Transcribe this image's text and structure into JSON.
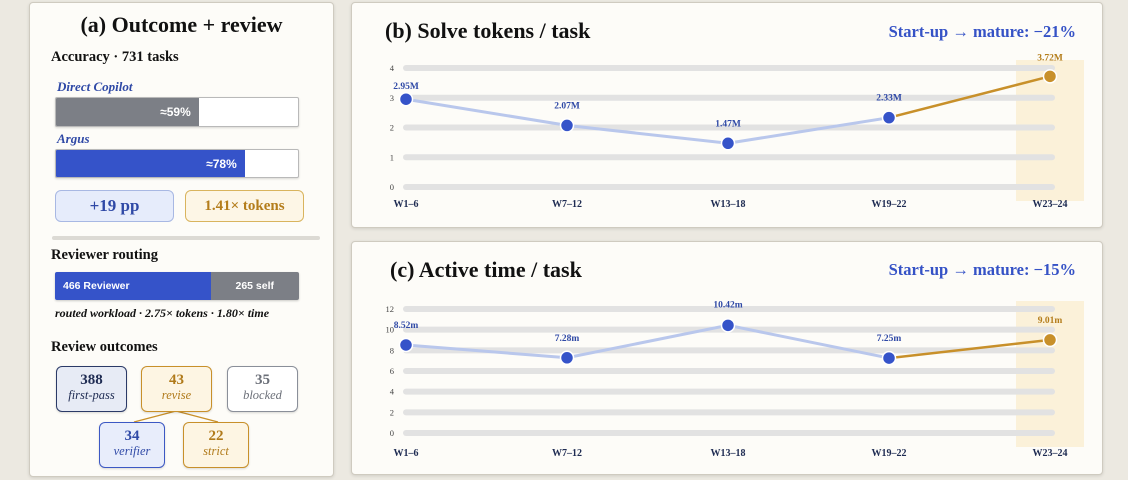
{
  "panel_a": {
    "title": "(a) Outcome + review",
    "accuracy_heading": "Accuracy · 731 tasks",
    "bars": [
      {
        "name": "Direct Copilot",
        "label": "≈59%",
        "value": 59,
        "color": "#7c7f86"
      },
      {
        "name": "Argus",
        "label": "≈78%",
        "value": 78,
        "color": "#3553c9"
      }
    ],
    "pill_gain": "+19 pp",
    "pill_tokens": "1.41× tokens",
    "routing_heading": "Reviewer routing",
    "routing": {
      "reviewer_label": "466 Reviewer",
      "reviewer_count": 466,
      "self_label": "265 self",
      "self_count": 265
    },
    "routing_note": "routed workload · 2.75× tokens · 1.80× time",
    "outcomes_heading": "Review outcomes",
    "outcomes": {
      "first_pass": {
        "n": "388",
        "label": "first-pass"
      },
      "revise": {
        "n": "43",
        "label": "revise"
      },
      "blocked": {
        "n": "35",
        "label": "blocked"
      },
      "verifier": {
        "n": "34",
        "label": "verifier"
      },
      "strict": {
        "n": "22",
        "label": "strict"
      }
    }
  },
  "panel_b": {
    "title": "(b) Solve tokens / task",
    "headline": "Start-up → mature: −21%"
  },
  "panel_c": {
    "title": "(c) Active time / task",
    "headline": "Start-up → mature: −15%"
  },
  "colors": {
    "blue": "#3553c9",
    "light_blue": "#b9c7ec",
    "amber": "#c8902a",
    "highlight": "#fbf1d9"
  },
  "chart_data": [
    {
      "type": "line",
      "title": "(b) Solve tokens / task",
      "categories": [
        "W1–6",
        "W7–12",
        "W13–18",
        "W19–22",
        "W23–24"
      ],
      "values": [
        2.95,
        2.07,
        1.47,
        2.33,
        3.72
      ],
      "data_labels": [
        "2.95M",
        "2.07M",
        "1.47M",
        "2.33M",
        "3.72M"
      ],
      "y_ticks": [
        "0",
        "1",
        "2",
        "3",
        "4"
      ],
      "ylim": [
        0,
        4
      ],
      "highlight_last": true
    },
    {
      "type": "line",
      "title": "(c) Active time / task",
      "categories": [
        "W1–6",
        "W7–12",
        "W13–18",
        "W19–22",
        "W23–24"
      ],
      "values": [
        8.52,
        7.28,
        10.42,
        7.25,
        9.01
      ],
      "data_labels": [
        "8.52m",
        "7.28m",
        "10.42m",
        "7.25m",
        "9.01m"
      ],
      "y_ticks": [
        "0",
        "2",
        "4",
        "6",
        "8",
        "10",
        "12"
      ],
      "ylim": [
        0,
        12
      ],
      "highlight_last": true
    }
  ]
}
